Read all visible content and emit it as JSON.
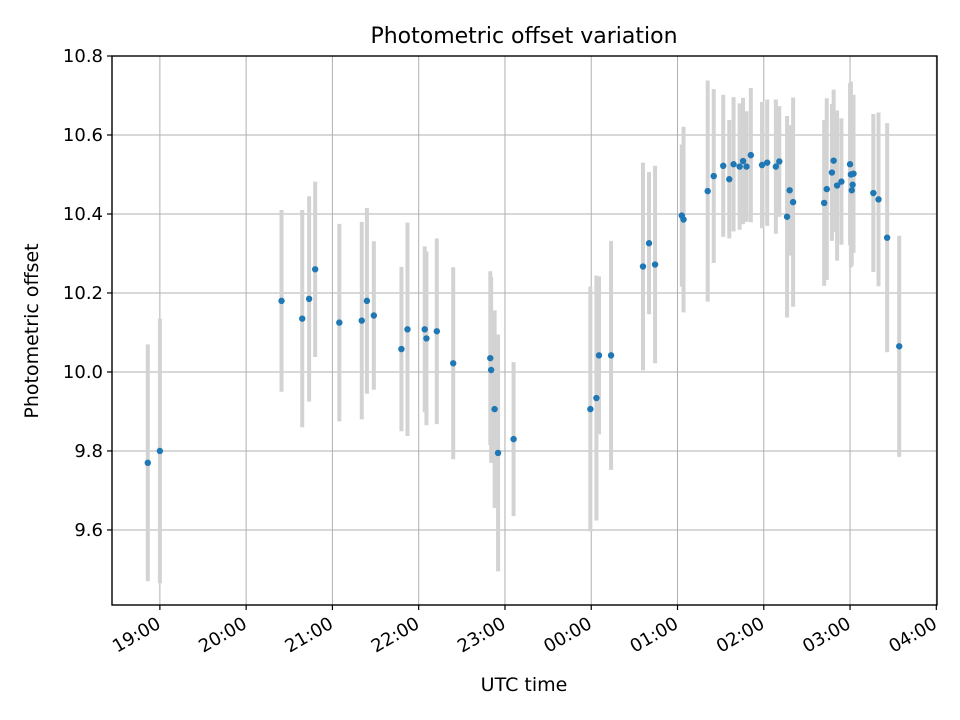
{
  "chart_data": {
    "type": "scatter",
    "title": "Photometric offset variation",
    "xlabel": "UTC time",
    "ylabel": "Photometric offset",
    "x_unit": "hours since 00:00 UTC",
    "xlim": [
      -5.555,
      4.008
    ],
    "ylim": [
      9.41,
      10.8
    ],
    "x_ticks": [
      {
        "label": "19:00",
        "value": -5
      },
      {
        "label": "20:00",
        "value": -4
      },
      {
        "label": "21:00",
        "value": -3
      },
      {
        "label": "22:00",
        "value": -2
      },
      {
        "label": "23:00",
        "value": -1
      },
      {
        "label": "00:00",
        "value": 0
      },
      {
        "label": "01:00",
        "value": 1
      },
      {
        "label": "02:00",
        "value": 2
      },
      {
        "label": "03:00",
        "value": 3
      },
      {
        "label": "04:00",
        "value": 4
      }
    ],
    "y_ticks": [
      {
        "label": "9.6",
        "value": 9.6
      },
      {
        "label": "9.8",
        "value": 9.8
      },
      {
        "label": "10.0",
        "value": 10.0
      },
      {
        "label": "10.2",
        "value": 10.2
      },
      {
        "label": "10.4",
        "value": 10.4
      },
      {
        "label": "10.6",
        "value": 10.6
      },
      {
        "label": "10.8",
        "value": 10.8
      }
    ],
    "grid": true,
    "colors": {
      "marker": "#1f77b4",
      "errorbar": "#d3d3d3",
      "grid": "#b0b0b0"
    },
    "points": [
      {
        "x": -5.14,
        "y": 9.77,
        "err": 0.3
      },
      {
        "x": -5.0,
        "y": 9.8,
        "err": 0.335
      },
      {
        "x": -3.59,
        "y": 10.18,
        "err": 0.23
      },
      {
        "x": -3.35,
        "y": 10.135,
        "err": 0.275
      },
      {
        "x": -3.27,
        "y": 10.185,
        "err": 0.26
      },
      {
        "x": -3.2,
        "y": 10.26,
        "err": 0.222
      },
      {
        "x": -2.92,
        "y": 10.125,
        "err": 0.25
      },
      {
        "x": -2.66,
        "y": 10.13,
        "err": 0.25
      },
      {
        "x": -2.6,
        "y": 10.18,
        "err": 0.235
      },
      {
        "x": -2.52,
        "y": 10.143,
        "err": 0.188
      },
      {
        "x": -2.2,
        "y": 10.058,
        "err": 0.208
      },
      {
        "x": -2.13,
        "y": 10.108,
        "err": 0.27
      },
      {
        "x": -1.93,
        "y": 10.108,
        "err": 0.21
      },
      {
        "x": -1.91,
        "y": 10.085,
        "err": 0.22
      },
      {
        "x": -1.79,
        "y": 10.103,
        "err": 0.235
      },
      {
        "x": -1.6,
        "y": 10.022,
        "err": 0.243
      },
      {
        "x": -1.17,
        "y": 10.035,
        "err": 0.22
      },
      {
        "x": -1.16,
        "y": 10.005,
        "err": 0.235
      },
      {
        "x": -1.12,
        "y": 9.906,
        "err": 0.25
      },
      {
        "x": -1.08,
        "y": 9.795,
        "err": 0.3
      },
      {
        "x": -0.9,
        "y": 9.83,
        "err": 0.195
      },
      {
        "x": -0.01,
        "y": 9.906,
        "err": 0.31
      },
      {
        "x": 0.06,
        "y": 9.934,
        "err": 0.31
      },
      {
        "x": 0.09,
        "y": 10.042,
        "err": 0.2
      },
      {
        "x": 0.23,
        "y": 10.042,
        "err": 0.29
      },
      {
        "x": 0.6,
        "y": 10.267,
        "err": 0.263
      },
      {
        "x": 0.67,
        "y": 10.326,
        "err": 0.18
      },
      {
        "x": 0.74,
        "y": 10.272,
        "err": 0.25
      },
      {
        "x": 1.05,
        "y": 10.396,
        "err": 0.18
      },
      {
        "x": 1.07,
        "y": 10.386,
        "err": 0.235
      },
      {
        "x": 1.35,
        "y": 10.458,
        "err": 0.28
      },
      {
        "x": 1.42,
        "y": 10.496,
        "err": 0.22
      },
      {
        "x": 1.53,
        "y": 10.522,
        "err": 0.18
      },
      {
        "x": 1.6,
        "y": 10.488,
        "err": 0.15
      },
      {
        "x": 1.65,
        "y": 10.526,
        "err": 0.17
      },
      {
        "x": 1.72,
        "y": 10.52,
        "err": 0.16
      },
      {
        "x": 1.76,
        "y": 10.534,
        "err": 0.16
      },
      {
        "x": 1.8,
        "y": 10.52,
        "err": 0.14
      },
      {
        "x": 1.85,
        "y": 10.549,
        "err": 0.17
      },
      {
        "x": 1.98,
        "y": 10.524,
        "err": 0.16
      },
      {
        "x": 2.04,
        "y": 10.53,
        "err": 0.16
      },
      {
        "x": 2.14,
        "y": 10.52,
        "err": 0.17
      },
      {
        "x": 2.18,
        "y": 10.533,
        "err": 0.14
      },
      {
        "x": 2.27,
        "y": 10.393,
        "err": 0.255
      },
      {
        "x": 2.3,
        "y": 10.46,
        "err": 0.165
      },
      {
        "x": 2.34,
        "y": 10.43,
        "err": 0.265
      },
      {
        "x": 2.7,
        "y": 10.428,
        "err": 0.21
      },
      {
        "x": 2.73,
        "y": 10.463,
        "err": 0.23
      },
      {
        "x": 2.79,
        "y": 10.505,
        "err": 0.173
      },
      {
        "x": 2.81,
        "y": 10.535,
        "err": 0.18
      },
      {
        "x": 2.85,
        "y": 10.472,
        "err": 0.19
      },
      {
        "x": 2.9,
        "y": 10.482,
        "err": 0.16
      },
      {
        "x": 3.0,
        "y": 10.526,
        "err": 0.205
      },
      {
        "x": 3.01,
        "y": 10.5,
        "err": 0.235
      },
      {
        "x": 3.02,
        "y": 10.46,
        "err": 0.19
      },
      {
        "x": 3.03,
        "y": 10.474,
        "err": 0.14
      },
      {
        "x": 3.04,
        "y": 10.502,
        "err": 0.2
      },
      {
        "x": 3.27,
        "y": 10.453,
        "err": 0.2
      },
      {
        "x": 3.33,
        "y": 10.437,
        "err": 0.22
      },
      {
        "x": 3.43,
        "y": 10.34,
        "err": 0.29
      },
      {
        "x": 3.57,
        "y": 10.065,
        "err": 0.28
      }
    ]
  }
}
